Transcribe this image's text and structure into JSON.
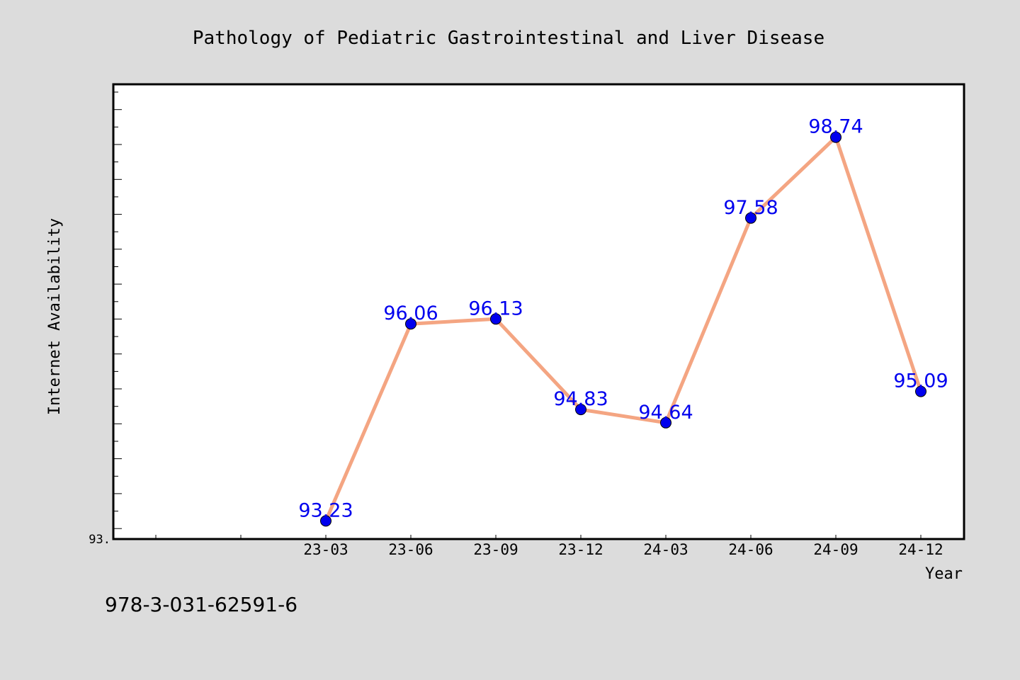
{
  "chart_data": {
    "type": "line",
    "title": "Pathology of Pediatric Gastrointestinal and Liver Disease",
    "xlabel": "Year",
    "ylabel": "Internet Availability",
    "categories": [
      "23-03",
      "23-06",
      "23-09",
      "23-12",
      "24-03",
      "24-06",
      "24-09",
      "24-12"
    ],
    "series": [
      {
        "values": [
          93.23,
          96.06,
          96.13,
          94.83,
          94.64,
          97.58,
          98.74,
          95.09
        ],
        "labels": [
          "93.23",
          "96.06",
          "96.13",
          "94.83",
          "94.64",
          "97.58",
          "98.74",
          "95.09"
        ]
      }
    ],
    "y_tick_label": "93.",
    "ylim": [
      92.97,
      99.5
    ],
    "grid": false,
    "colors": {
      "line": "#f4a582",
      "marker": "#0000ee",
      "label": "#0000ee",
      "background": "#dcdcdc",
      "plot_background": "#ffffff"
    }
  },
  "footer": {
    "isbn": "978-3-031-62591-6"
  }
}
